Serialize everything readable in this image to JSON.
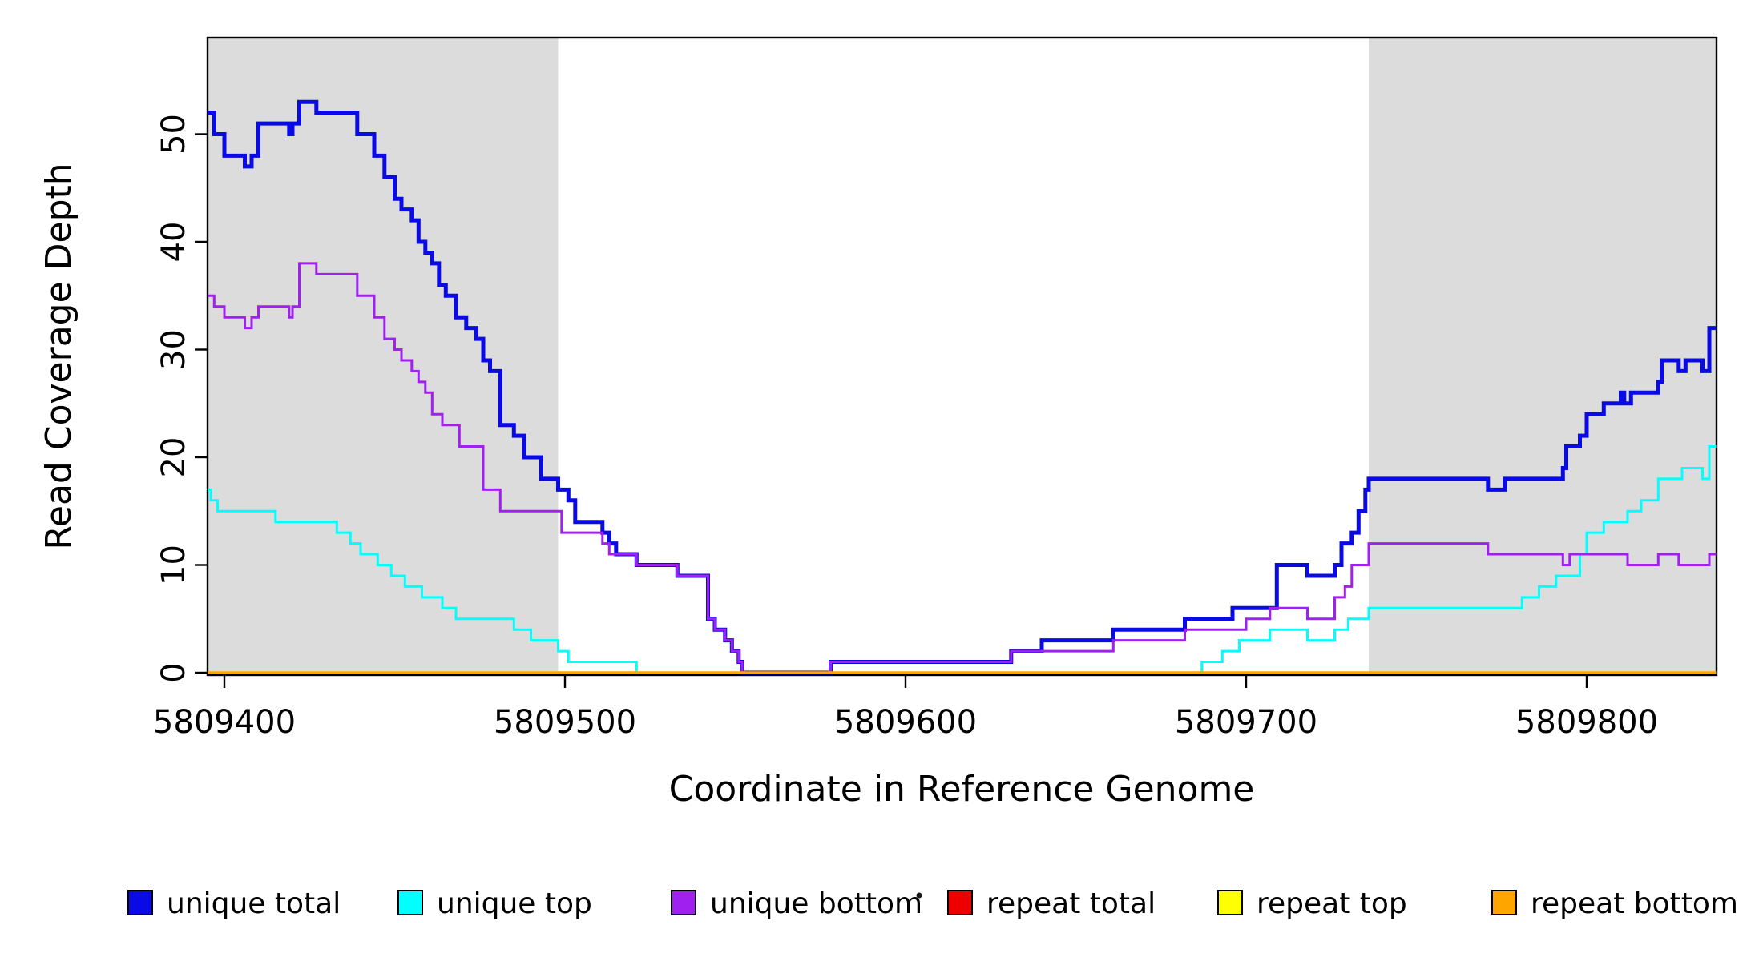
{
  "figure": {
    "background": "#FFFFFF",
    "plot_background": "#FFFFFF",
    "shade_color": "#DCDCDC"
  },
  "chart_data": {
    "type": "line",
    "subtype": "step-coverage",
    "title": "",
    "xlabel": "Coordinate in Reference Genome",
    "ylabel": "Read Coverage Depth",
    "xlim": [
      5809395,
      5809838
    ],
    "ylim": [
      0,
      59
    ],
    "x_ticks": [
      5809400,
      5809500,
      5809600,
      5809700,
      5809800
    ],
    "y_ticks": [
      0,
      10,
      20,
      30,
      40,
      50
    ],
    "grid": false,
    "legend_position": "bottom-horizontal",
    "shaded_regions": [
      {
        "x0": 5809395,
        "x1": 5809498,
        "color": "#DCDCDC"
      },
      {
        "x0": 5809736,
        "x1": 5809838,
        "color": "#DCDCDC"
      }
    ],
    "series": [
      {
        "name": "unique total",
        "color": "#0A0AE6",
        "line_width": 5,
        "step_points": [
          [
            5809395,
            52
          ],
          [
            5809397,
            50
          ],
          [
            5809400,
            48
          ],
          [
            5809406,
            47
          ],
          [
            5809408,
            48
          ],
          [
            5809410,
            51
          ],
          [
            5809419,
            50
          ],
          [
            5809420,
            51
          ],
          [
            5809422,
            53
          ],
          [
            5809427,
            52
          ],
          [
            5809439,
            50
          ],
          [
            5809444,
            48
          ],
          [
            5809447,
            46
          ],
          [
            5809450,
            44
          ],
          [
            5809452,
            43
          ],
          [
            5809455,
            42
          ],
          [
            5809457,
            40
          ],
          [
            5809459,
            39
          ],
          [
            5809461,
            38
          ],
          [
            5809463,
            36
          ],
          [
            5809465,
            35
          ],
          [
            5809468,
            33
          ],
          [
            5809471,
            32
          ],
          [
            5809474,
            31
          ],
          [
            5809476,
            29
          ],
          [
            5809478,
            28
          ],
          [
            5809481,
            23
          ],
          [
            5809485,
            22
          ],
          [
            5809488,
            20
          ],
          [
            5809493,
            18
          ],
          [
            5809498,
            17
          ],
          [
            5809501,
            16
          ],
          [
            5809503,
            14
          ],
          [
            5809511,
            13
          ],
          [
            5809513,
            12
          ],
          [
            5809515,
            11
          ],
          [
            5809521,
            10
          ],
          [
            5809533,
            9
          ],
          [
            5809542,
            5
          ],
          [
            5809544,
            4
          ],
          [
            5809547,
            3
          ],
          [
            5809549,
            2
          ],
          [
            5809551,
            1
          ],
          [
            5809552,
            0
          ],
          [
            5809578,
            1
          ],
          [
            5809631,
            2
          ],
          [
            5809640,
            3
          ],
          [
            5809661,
            4
          ],
          [
            5809682,
            5
          ],
          [
            5809696,
            6
          ],
          [
            5809709,
            10
          ],
          [
            5809718,
            9
          ],
          [
            5809726,
            10
          ],
          [
            5809728,
            12
          ],
          [
            5809731,
            13
          ],
          [
            5809733,
            15
          ],
          [
            5809735,
            17
          ],
          [
            5809736,
            18
          ],
          [
            5809771,
            17
          ],
          [
            5809776,
            18
          ],
          [
            5809793,
            19
          ],
          [
            5809794,
            21
          ],
          [
            5809798,
            22
          ],
          [
            5809800,
            24
          ],
          [
            5809805,
            25
          ],
          [
            5809810,
            26
          ],
          [
            5809811,
            25
          ],
          [
            5809813,
            26
          ],
          [
            5809821,
            27
          ],
          [
            5809822,
            29
          ],
          [
            5809827,
            28
          ],
          [
            5809829,
            29
          ],
          [
            5809834,
            28
          ],
          [
            5809836,
            32
          ]
        ]
      },
      {
        "name": "unique top",
        "color": "#00FFFF",
        "line_width": 3,
        "step_points": [
          [
            5809395,
            17
          ],
          [
            5809396,
            16
          ],
          [
            5809398,
            15
          ],
          [
            5809415,
            14
          ],
          [
            5809433,
            13
          ],
          [
            5809437,
            12
          ],
          [
            5809440,
            11
          ],
          [
            5809445,
            10
          ],
          [
            5809449,
            9
          ],
          [
            5809453,
            8
          ],
          [
            5809458,
            7
          ],
          [
            5809464,
            6
          ],
          [
            5809468,
            5
          ],
          [
            5809485,
            4
          ],
          [
            5809490,
            3
          ],
          [
            5809498,
            2
          ],
          [
            5809501,
            1
          ],
          [
            5809521,
            0
          ],
          [
            5809687,
            1
          ],
          [
            5809693,
            2
          ],
          [
            5809698,
            3
          ],
          [
            5809707,
            4
          ],
          [
            5809718,
            3
          ],
          [
            5809726,
            4
          ],
          [
            5809730,
            5
          ],
          [
            5809736,
            6
          ],
          [
            5809781,
            7
          ],
          [
            5809786,
            8
          ],
          [
            5809791,
            9
          ],
          [
            5809798,
            11
          ],
          [
            5809800,
            13
          ],
          [
            5809805,
            14
          ],
          [
            5809812,
            15
          ],
          [
            5809816,
            16
          ],
          [
            5809821,
            18
          ],
          [
            5809828,
            19
          ],
          [
            5809834,
            18
          ],
          [
            5809836,
            21
          ]
        ]
      },
      {
        "name": "unique bottom",
        "color": "#A020F0",
        "line_width": 3,
        "step_points": [
          [
            5809395,
            35
          ],
          [
            5809397,
            34
          ],
          [
            5809400,
            33
          ],
          [
            5809406,
            32
          ],
          [
            5809408,
            33
          ],
          [
            5809410,
            34
          ],
          [
            5809419,
            33
          ],
          [
            5809420,
            34
          ],
          [
            5809422,
            38
          ],
          [
            5809427,
            37
          ],
          [
            5809439,
            35
          ],
          [
            5809444,
            33
          ],
          [
            5809447,
            31
          ],
          [
            5809450,
            30
          ],
          [
            5809452,
            29
          ],
          [
            5809455,
            28
          ],
          [
            5809457,
            27
          ],
          [
            5809459,
            26
          ],
          [
            5809461,
            24
          ],
          [
            5809464,
            23
          ],
          [
            5809469,
            21
          ],
          [
            5809476,
            17
          ],
          [
            5809481,
            15
          ],
          [
            5809499,
            13
          ],
          [
            5809511,
            12
          ],
          [
            5809513,
            11
          ],
          [
            5809521,
            10
          ],
          [
            5809533,
            9
          ],
          [
            5809542,
            5
          ],
          [
            5809544,
            4
          ],
          [
            5809547,
            3
          ],
          [
            5809549,
            2
          ],
          [
            5809551,
            1
          ],
          [
            5809552,
            0
          ],
          [
            5809578,
            1
          ],
          [
            5809631,
            2
          ],
          [
            5809661,
            3
          ],
          [
            5809682,
            4
          ],
          [
            5809700,
            5
          ],
          [
            5809707,
            6
          ],
          [
            5809718,
            5
          ],
          [
            5809726,
            7
          ],
          [
            5809729,
            8
          ],
          [
            5809731,
            10
          ],
          [
            5809736,
            12
          ],
          [
            5809771,
            11
          ],
          [
            5809793,
            10
          ],
          [
            5809795,
            11
          ],
          [
            5809812,
            10
          ],
          [
            5809821,
            11
          ],
          [
            5809827,
            10
          ],
          [
            5809836,
            11
          ]
        ]
      },
      {
        "name": "repeat total",
        "color": "#EE0000",
        "line_width": 3,
        "step_points": [
          [
            5809395,
            0
          ]
        ]
      },
      {
        "name": "repeat top",
        "color": "#FFFF00",
        "line_width": 3,
        "step_points": [
          [
            5809395,
            0
          ]
        ]
      },
      {
        "name": "repeat bottom",
        "color": "#FFA500",
        "line_width": 3.5,
        "step_points": [
          [
            5809395,
            0
          ]
        ]
      }
    ],
    "legend": [
      {
        "label": "unique total",
        "color": "#0A0AE6"
      },
      {
        "label": "unique top",
        "color": "#00FFFF"
      },
      {
        "label": "unique bottom",
        "color": "#A020F0"
      },
      {
        "label": "repeat total",
        "color": "#EE0000"
      },
      {
        "label": "repeat top",
        "color": "#FFFF00"
      },
      {
        "label": "repeat bottom",
        "color": "#FFA500"
      }
    ]
  }
}
